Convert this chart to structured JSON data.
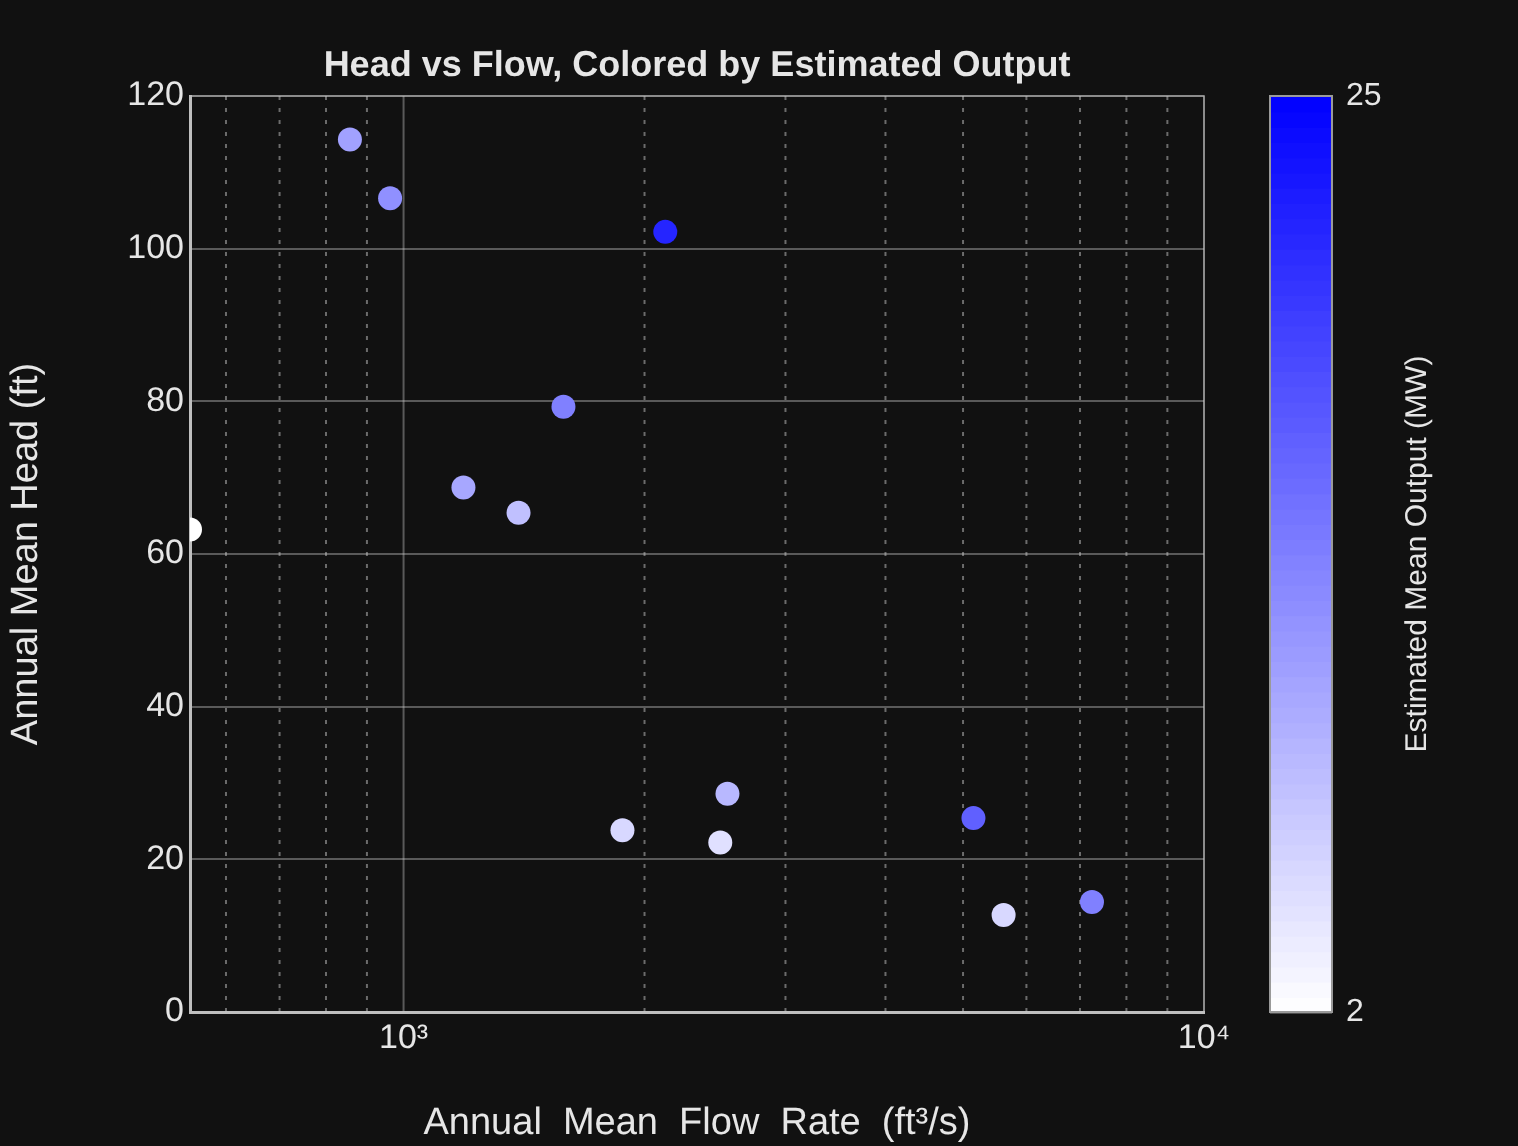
{
  "chart_data": {
    "type": "scatter",
    "title": "Head vs Flow, Colored by Estimated Output",
    "xlabel": "Annual  Mean  Flow  Rate  (ft³/s)",
    "ylabel": "Annual Mean Head (ft)",
    "clabel": "Estimated Mean Output (MW)",
    "x": [
      541,
      857,
      962,
      1188,
      1392,
      1584,
      2123,
      1877,
      2487,
      2539,
      5152,
      5619,
      7245
    ],
    "series": [
      {
        "values": [
          63.2,
          114.3,
          106.6,
          68.7,
          65.4,
          79.3,
          102.2,
          23.8,
          22.2,
          28.6,
          25.4,
          12.7,
          14.4
        ],
        "cvalues": [
          2,
          10.5,
          12,
          9.9,
          7.7,
          13.5,
          21.7,
          5.5,
          4.8,
          8.4,
          16.3,
          5.5,
          13.5
        ]
      }
    ],
    "log": "x",
    "xlim": [
      541,
      10000
    ],
    "xticks": [
      {
        "value": 600,
        "label": null
      },
      {
        "value": 700,
        "label": null
      },
      {
        "value": 800,
        "label": null
      },
      {
        "value": 900,
        "label": null
      },
      {
        "value": 1000,
        "label": "10³"
      },
      {
        "value": 2000,
        "label": null
      },
      {
        "value": 3000,
        "label": null
      },
      {
        "value": 4000,
        "label": null
      },
      {
        "value": 5000,
        "label": null
      },
      {
        "value": 6000,
        "label": null
      },
      {
        "value": 7000,
        "label": null
      },
      {
        "value": 8000,
        "label": null
      },
      {
        "value": 9000,
        "label": null
      },
      {
        "value": 10000,
        "label": "10⁴"
      }
    ],
    "ylim": [
      0,
      120
    ],
    "yticks": [
      0,
      20,
      40,
      60,
      80,
      100,
      120
    ],
    "clim": [
      2,
      25
    ],
    "cticks": [
      2,
      25
    ],
    "grid": true,
    "marker": "circle",
    "legend": false
  }
}
